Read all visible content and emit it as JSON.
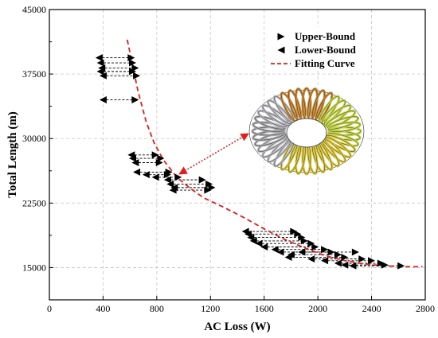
{
  "chart_data": {
    "type": "scatter",
    "title": "",
    "xlabel": "AC Loss (W)",
    "ylabel": "Total Length (m)",
    "xlim": [
      0,
      2800
    ],
    "ylim": [
      11250,
      45000
    ],
    "xticks": [
      0,
      400,
      800,
      1200,
      1600,
      2000,
      2400,
      2800
    ],
    "yticks": [
      15000,
      22500,
      30000,
      37500,
      45000
    ],
    "grid": true,
    "legend_position": "top-right",
    "colors": {
      "bound_markers": "#000000",
      "fit_curve": "#e02020",
      "range_lines": "#000000"
    },
    "series": [
      {
        "name": "Upper-Bound",
        "marker": "right-triangle",
        "points": [
          [
            610,
            39400
          ],
          [
            620,
            38800
          ],
          [
            640,
            38200
          ],
          [
            620,
            37800
          ],
          [
            650,
            37300
          ],
          [
            640,
            34500
          ],
          [
            790,
            28100
          ],
          [
            830,
            27700
          ],
          [
            820,
            27200
          ],
          [
            890,
            26100
          ],
          [
            880,
            25800
          ],
          [
            960,
            25500
          ],
          [
            1140,
            25200
          ],
          [
            1190,
            24700
          ],
          [
            1210,
            24300
          ],
          [
            1180,
            24000
          ],
          [
            1820,
            19200
          ],
          [
            1850,
            18900
          ],
          [
            1880,
            18500
          ],
          [
            1900,
            18100
          ],
          [
            1950,
            17800
          ],
          [
            1980,
            17400
          ],
          [
            2050,
            17100
          ],
          [
            2100,
            16800
          ],
          [
            2150,
            16500
          ],
          [
            2200,
            16200
          ],
          [
            2280,
            16800
          ],
          [
            2330,
            16000
          ],
          [
            2400,
            15800
          ],
          [
            2470,
            15500
          ],
          [
            2500,
            15300
          ],
          [
            2620,
            15200
          ]
        ]
      },
      {
        "name": "Lower-Bound",
        "marker": "left-triangle",
        "points": [
          [
            370,
            39400
          ],
          [
            380,
            38800
          ],
          [
            390,
            38200
          ],
          [
            380,
            37800
          ],
          [
            400,
            37300
          ],
          [
            400,
            34500
          ],
          [
            610,
            28100
          ],
          [
            620,
            27700
          ],
          [
            640,
            27200
          ],
          [
            650,
            26100
          ],
          [
            720,
            25800
          ],
          [
            790,
            25500
          ],
          [
            880,
            25200
          ],
          [
            900,
            24700
          ],
          [
            930,
            24300
          ],
          [
            920,
            24000
          ],
          [
            1460,
            19200
          ],
          [
            1480,
            18900
          ],
          [
            1500,
            18500
          ],
          [
            1520,
            18100
          ],
          [
            1560,
            17800
          ],
          [
            1600,
            17400
          ],
          [
            1680,
            17100
          ],
          [
            1720,
            16800
          ],
          [
            1800,
            16500
          ],
          [
            1780,
            16200
          ],
          [
            1880,
            16800
          ],
          [
            1950,
            16000
          ],
          [
            2050,
            15800
          ],
          [
            2150,
            15500
          ],
          [
            2200,
            15300
          ],
          [
            2260,
            15200
          ]
        ]
      },
      {
        "name": "Fitting Curve",
        "style": "dashed-line",
        "points": [
          [
            580,
            41500
          ],
          [
            620,
            38500
          ],
          [
            660,
            35500
          ],
          [
            720,
            32000
          ],
          [
            780,
            29500
          ],
          [
            850,
            27500
          ],
          [
            950,
            25500
          ],
          [
            1050,
            24200
          ],
          [
            1150,
            23100
          ],
          [
            1300,
            22000
          ],
          [
            1450,
            20800
          ],
          [
            1600,
            19500
          ],
          [
            1750,
            18300
          ],
          [
            1900,
            17300
          ],
          [
            2050,
            16400
          ],
          [
            2200,
            15800
          ],
          [
            2350,
            15400
          ],
          [
            2500,
            15200
          ],
          [
            2650,
            15100
          ],
          [
            2780,
            15100
          ]
        ]
      }
    ],
    "annotations": [
      {
        "type": "dotted-arrow",
        "from": [
          950,
          25600
        ],
        "to_description": "inset torus coil image",
        "color": "#e02020"
      },
      {
        "type": "inset-image",
        "description": "toroidal coil rendering with gray, orange, yellow and green coil segments"
      }
    ]
  }
}
